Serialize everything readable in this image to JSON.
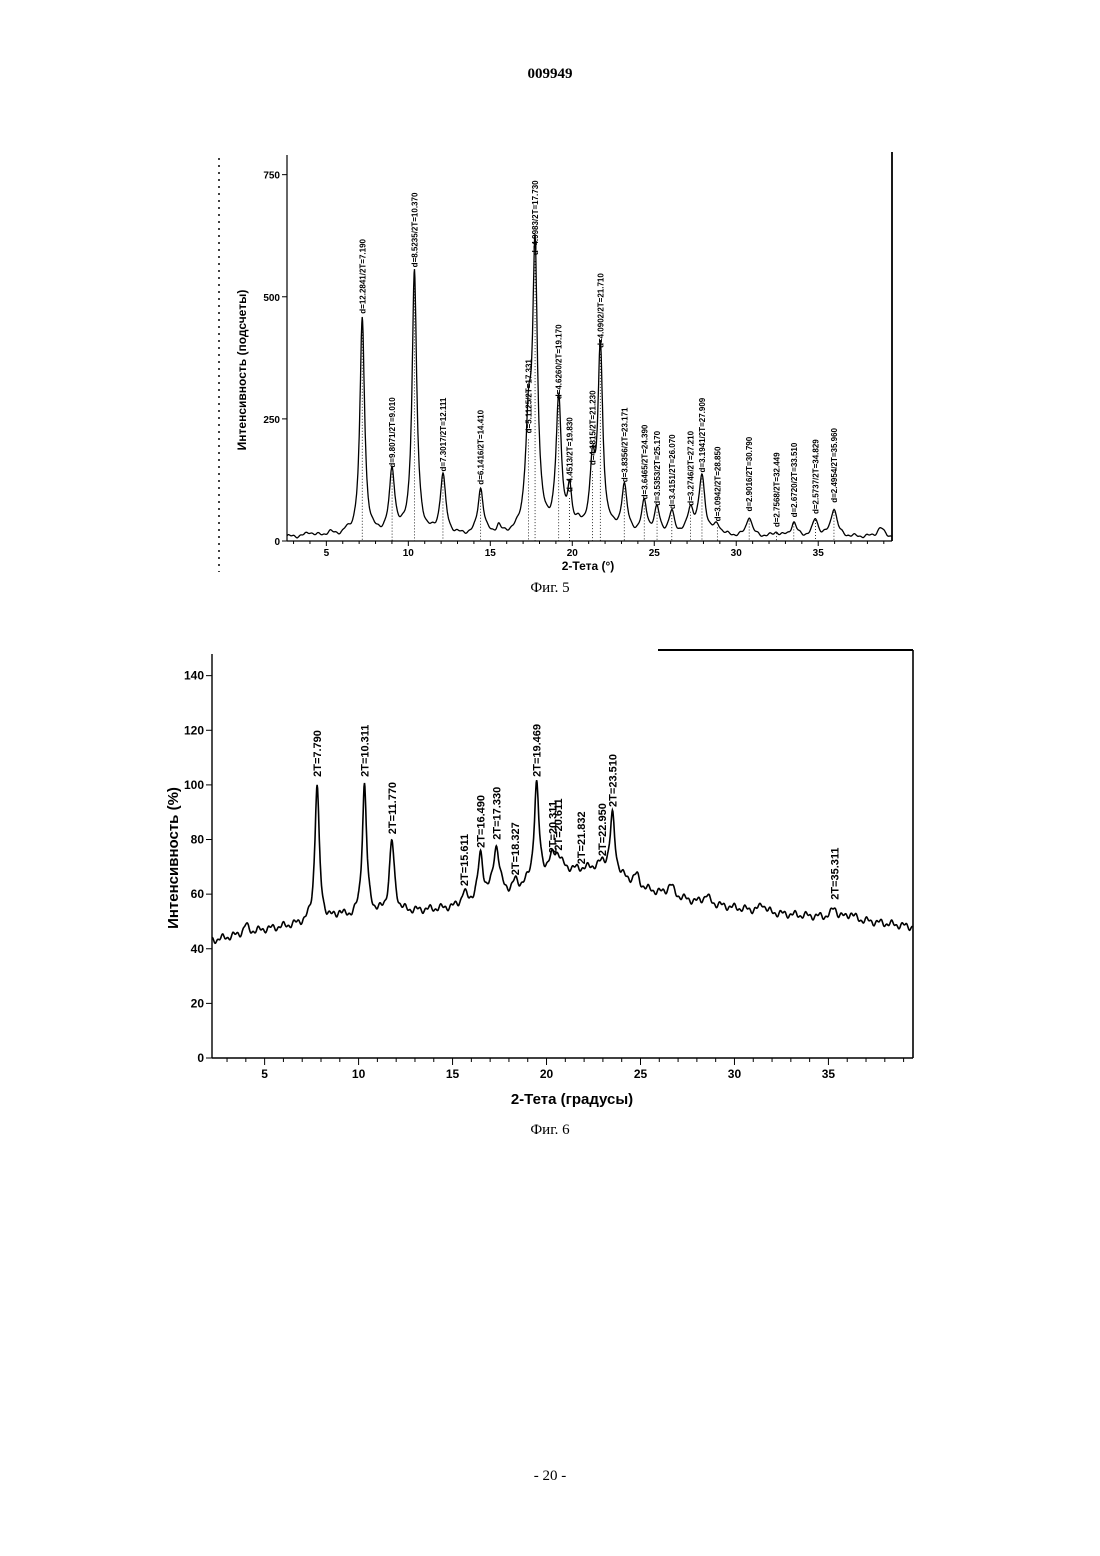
{
  "document": {
    "doc_number": "009949",
    "page_number": "- 20 -"
  },
  "chart_data": [
    {
      "type": "line",
      "caption": "Фиг. 5",
      "xlabel": "2-Тета (°)",
      "ylabel": "Интенсивность (подсчеты)",
      "xlim": [
        2.6,
        39.5
      ],
      "ylim": [
        0,
        780
      ],
      "xticks": [
        5,
        10,
        15,
        20,
        25,
        30,
        35
      ],
      "yticks": [
        0,
        250,
        500,
        750
      ],
      "baseline": 8,
      "peaks": [
        {
          "x": 7.19,
          "y": 445,
          "w": 0.17,
          "label": "d=12.2841/2T=7.190"
        },
        {
          "x": 9.01,
          "y": 130,
          "w": 0.2,
          "label": "d=9.8071/2T=9.010"
        },
        {
          "x": 10.37,
          "y": 540,
          "w": 0.17,
          "label": "d=8.5235/2T=10.370"
        },
        {
          "x": 12.111,
          "y": 122,
          "w": 0.2,
          "label": "d=7.3017/2T=12.111"
        },
        {
          "x": 14.41,
          "y": 95,
          "w": 0.2,
          "label": "d=6.1416/2T=14.410"
        },
        {
          "x": 17.331,
          "y": 200,
          "w": 0.22,
          "label": "d=5.1125/2T=17.331"
        },
        {
          "x": 17.73,
          "y": 565,
          "w": 0.18,
          "label": "d=4.9983/2T=17.730"
        },
        {
          "x": 19.17,
          "y": 270,
          "w": 0.2,
          "label": "d=4.6260/2T=19.170"
        },
        {
          "x": 19.83,
          "y": 80,
          "w": 0.15,
          "label": "d=4.4513/2T=19.830"
        },
        {
          "x": 21.23,
          "y": 135,
          "w": 0.18,
          "label": "d=4.1815/2T=21.230"
        },
        {
          "x": 21.71,
          "y": 375,
          "w": 0.18,
          "label": "d=4.0902/2T=21.710"
        },
        {
          "x": 23.171,
          "y": 100,
          "w": 0.2,
          "label": "d=3.8356/2T=23.171"
        },
        {
          "x": 24.39,
          "y": 65,
          "w": 0.2,
          "label": "d=3.6465/2T=24.390"
        },
        {
          "x": 25.17,
          "y": 52,
          "w": 0.2,
          "label": "d=3.5353/2T=25.170"
        },
        {
          "x": 26.07,
          "y": 45,
          "w": 0.2,
          "label": "d=3.4151/2T=26.070"
        },
        {
          "x": 27.21,
          "y": 52,
          "w": 0.22,
          "label": "d=3.2746/2T=27.210"
        },
        {
          "x": 27.909,
          "y": 120,
          "w": 0.22,
          "label": "d=3.1941/2T=27.909"
        },
        {
          "x": 28.85,
          "y": 20,
          "w": 0.25,
          "label": "d=3.0942/2T=28.850"
        },
        {
          "x": 30.79,
          "y": 40,
          "w": 0.2,
          "label": "d=2.9016/2T=30.790"
        },
        {
          "x": 32.449,
          "y": 8,
          "w": 0.2,
          "label": "d=2.7568/2T=32.449"
        },
        {
          "x": 33.51,
          "y": 28,
          "w": 0.2,
          "label": "d=2.6720/2T=33.510"
        },
        {
          "x": 34.829,
          "y": 35,
          "w": 0.2,
          "label": "d=2.5737/2T=34.829"
        },
        {
          "x": 35.96,
          "y": 58,
          "w": 0.22,
          "label": "d=2.4954/2T=35.960"
        }
      ],
      "minor_bumps": [
        {
          "x": 4.0,
          "y": 8,
          "w": 0.25
        },
        {
          "x": 5.2,
          "y": 7,
          "w": 0.25
        },
        {
          "x": 6.2,
          "y": 6,
          "w": 0.2
        },
        {
          "x": 15.5,
          "y": 15,
          "w": 0.15
        },
        {
          "x": 20.4,
          "y": 20,
          "w": 0.2
        },
        {
          "x": 22.3,
          "y": 10,
          "w": 0.2
        },
        {
          "x": 38.8,
          "y": 18,
          "w": 0.25
        }
      ]
    },
    {
      "type": "line",
      "caption": "Фиг. 6",
      "xlabel": "2-Тета (градусы)",
      "ylabel": "Интенсивность (%)",
      "xlim": [
        2.2,
        39.5
      ],
      "ylim": [
        0,
        145
      ],
      "xticks": [
        5,
        10,
        15,
        20,
        25,
        30,
        35
      ],
      "yticks": [
        0,
        20,
        40,
        60,
        80,
        100,
        120,
        140
      ],
      "background": [
        [
          2.2,
          43
        ],
        [
          5,
          47
        ],
        [
          8,
          50
        ],
        [
          12,
          53
        ],
        [
          15,
          55
        ],
        [
          18,
          60
        ],
        [
          20.5,
          68
        ],
        [
          23,
          70
        ],
        [
          25,
          62
        ],
        [
          28,
          57
        ],
        [
          32,
          53
        ],
        [
          36,
          51
        ],
        [
          39.5,
          48
        ]
      ],
      "peaks": [
        {
          "x": 7.79,
          "y": 100,
          "w": 0.14,
          "label": "2T=7.790"
        },
        {
          "x": 10.311,
          "y": 100,
          "w": 0.14,
          "label": "2T=10.311"
        },
        {
          "x": 11.77,
          "y": 79,
          "w": 0.16,
          "label": "2T=11.770"
        },
        {
          "x": 15.611,
          "y": 60,
          "w": 0.16,
          "label": "2T=15.611"
        },
        {
          "x": 16.49,
          "y": 74,
          "w": 0.16,
          "label": "2T=16.490"
        },
        {
          "x": 17.33,
          "y": 77,
          "w": 0.2,
          "label": "2T=17.330"
        },
        {
          "x": 18.327,
          "y": 64,
          "w": 0.14,
          "label": "2T=18.327"
        },
        {
          "x": 19.469,
          "y": 100,
          "w": 0.15,
          "label": "2T=19.469"
        },
        {
          "x": 20.311,
          "y": 72,
          "w": 0.22,
          "label": "2T=20.311"
        },
        {
          "x": 20.611,
          "y": 73,
          "w": 0.22,
          "label": "2T=20.611"
        },
        {
          "x": 21.832,
          "y": 68,
          "w": 0.2,
          "label": "2T=21.832"
        },
        {
          "x": 22.95,
          "y": 71,
          "w": 0.17,
          "label": "2T=22.950"
        },
        {
          "x": 23.51,
          "y": 89,
          "w": 0.15,
          "label": "2T=23.510"
        },
        {
          "x": 35.311,
          "y": 55,
          "w": 0.17,
          "label": "2T=35.311"
        }
      ],
      "minor_bumps": [
        {
          "x": 4.0,
          "y": 3,
          "w": 0.15
        },
        {
          "x": 9.0,
          "y": 2,
          "w": 0.15
        },
        {
          "x": 24.8,
          "y": 4,
          "w": 0.2
        },
        {
          "x": 26.6,
          "y": 4,
          "w": 0.2
        },
        {
          "x": 28.5,
          "y": 3,
          "w": 0.2
        },
        {
          "x": 31.5,
          "y": 3,
          "w": 0.18
        },
        {
          "x": 36.2,
          "y": 2,
          "w": 0.2
        }
      ]
    }
  ]
}
